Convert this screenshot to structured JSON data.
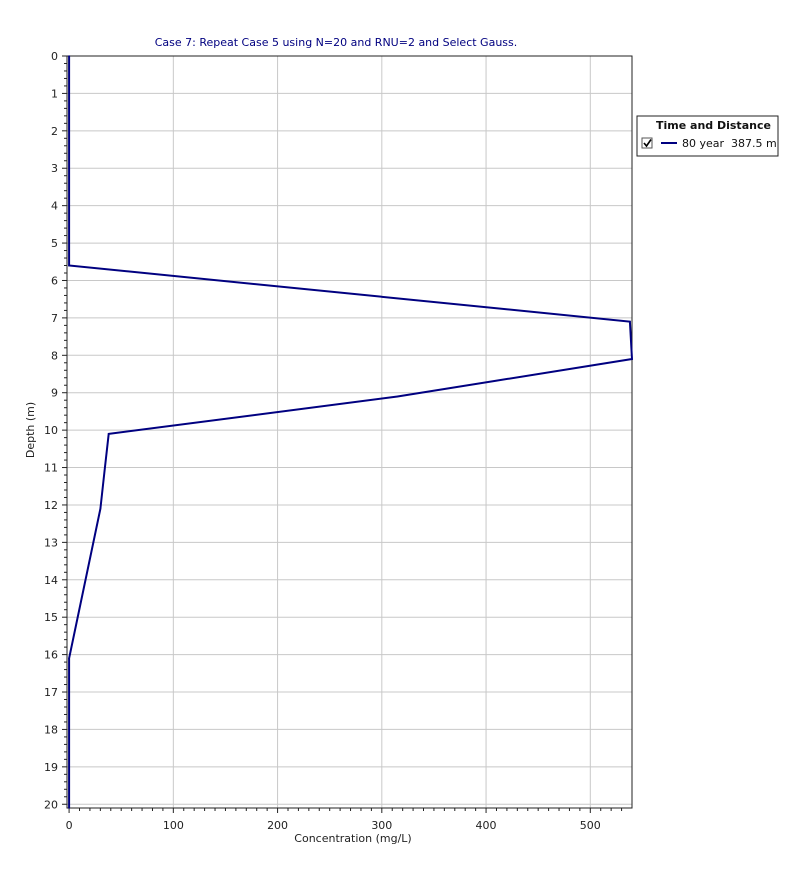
{
  "chart_data": {
    "type": "line",
    "title": "Case 7: Repeat Case 5 using N=20 and RNU=2 and Select Gauss.",
    "xlabel": "Concentration (mg/L)",
    "ylabel": "Depth (m)",
    "xlim": [
      -2,
      540
    ],
    "ylim": [
      0,
      20.1
    ],
    "y_inverted": true,
    "grid": true,
    "x_ticks": [
      "0",
      "100",
      "200",
      "300",
      "400",
      "500"
    ],
    "y_ticks": [
      "0",
      "1",
      "2",
      "3",
      "4",
      "5",
      "6",
      "7",
      "8",
      "9",
      "10",
      "11",
      "12",
      "13",
      "14",
      "15",
      "16",
      "17",
      "18",
      "19",
      "20"
    ],
    "legend": {
      "title": "Time and Distance",
      "position": "right",
      "checked": true
    },
    "series": [
      {
        "name": "80 year  387.5 m",
        "color": "#000080",
        "points": [
          {
            "x": 0,
            "y": 0
          },
          {
            "x": 0,
            "y": 5.6
          },
          {
            "x": 538,
            "y": 7.1
          },
          {
            "x": 540,
            "y": 8.1
          },
          {
            "x": 315,
            "y": 9.1
          },
          {
            "x": 38,
            "y": 10.1
          },
          {
            "x": 34,
            "y": 11.1
          },
          {
            "x": 30,
            "y": 12.1
          },
          {
            "x": 0,
            "y": 16.1
          },
          {
            "x": 0,
            "y": 20.1
          }
        ]
      }
    ]
  },
  "colors": {
    "title": "#000080",
    "grid": "#c8c8c8",
    "axis": "#222222"
  }
}
